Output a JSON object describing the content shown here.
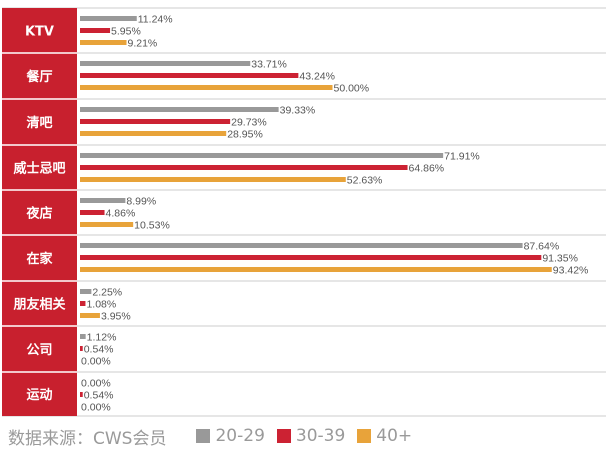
{
  "chart_data": {
    "type": "bar",
    "orientation": "horizontal",
    "xlim": [
      0,
      100
    ],
    "unit": "%",
    "categories": [
      "KTV",
      "餐厅",
      "清吧",
      "威士忌吧",
      "夜店",
      "在家",
      "朋友相关",
      "公司",
      "运动"
    ],
    "series": [
      {
        "name": "20-29",
        "color": "#999999",
        "values": [
          11.24,
          33.71,
          39.33,
          71.91,
          8.99,
          87.64,
          2.25,
          1.12,
          0.0
        ],
        "labels": [
          "11.24%",
          "33.71%",
          "39.33%",
          "71.91%",
          "8.99%",
          "87.64%",
          "2.25%",
          "1.12%",
          "0.00%"
        ]
      },
      {
        "name": "30-39",
        "color": "#cc2233",
        "values": [
          5.95,
          43.24,
          29.73,
          64.86,
          4.86,
          91.35,
          1.08,
          0.54,
          0.54
        ],
        "labels": [
          "5.95%",
          "43.24%",
          "29.73%",
          "64.86%",
          "4.86%",
          "91.35%",
          "1.08%",
          "0.54%",
          "0.54%"
        ]
      },
      {
        "name": "40+",
        "color": "#e8a33a",
        "values": [
          9.21,
          50.0,
          28.95,
          52.63,
          10.53,
          93.42,
          3.95,
          0.0,
          0.0
        ],
        "labels": [
          "9.21%",
          "50.00%",
          "28.95%",
          "52.63%",
          "10.53%",
          "93.42%",
          "3.95%",
          "0.00%",
          "0.00%"
        ]
      }
    ],
    "legend": "bottom"
  },
  "colors": {
    "category_band": "#c8202e",
    "separator": "#cccccc",
    "text_muted": "#9a9a9a"
  },
  "footer": {
    "source": "数据来源：CWS会员"
  }
}
